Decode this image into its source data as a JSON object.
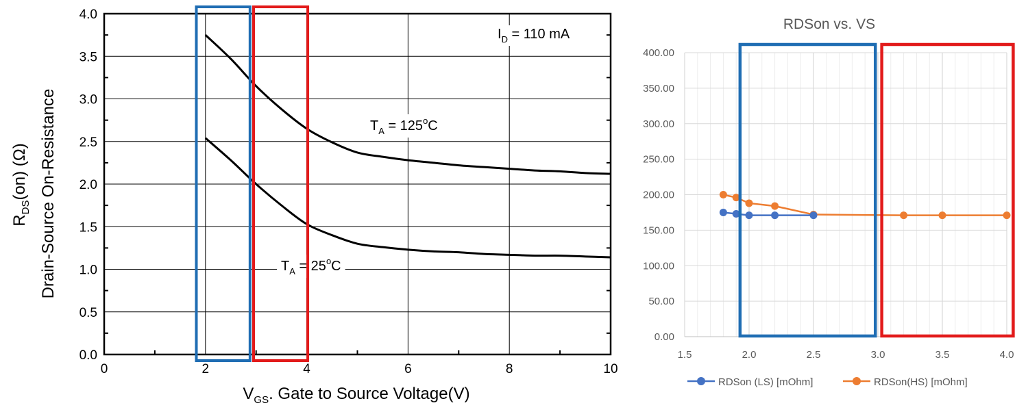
{
  "colors": {
    "curve_black": "#000000",
    "grid_left": "#000000",
    "grid_right": "#d9d9d9",
    "series_ls": "#4472c4",
    "series_hs": "#ed7d31",
    "box_blue": "#1f6db3",
    "box_red": "#e21a1a",
    "axis_text": "#595959"
  },
  "chart_data": [
    {
      "type": "line",
      "title": "",
      "xlabel_main": "V",
      "xlabel_sub": "GS",
      "xlabel_rest": ". Gate to Source Voltage(V)",
      "ylabel_r": "R",
      "ylabel_sub": "DS",
      "ylabel_rest": "(on)   (Ω)",
      "ylabel_line2": "Drain-Source On-Resistance",
      "xlim": [
        0,
        10
      ],
      "ylim": [
        0,
        4.0
      ],
      "x_ticks": [
        "0",
        "2",
        "4",
        "6",
        "8",
        "10"
      ],
      "y_ticks": [
        "0.0",
        "0.5",
        "1.0",
        "1.5",
        "2.0",
        "2.5",
        "3.0",
        "3.5",
        "4.0"
      ],
      "grid": true,
      "annotations": {
        "id_main": "I",
        "id_sub": "D",
        "id_rest": " = 110 mA",
        "t125_main": "T",
        "t125_sub": "A",
        "t125_rest": " = 125",
        "t125_sup": "o",
        "t125_unit": "C",
        "t25_main": "T",
        "t25_sub": "A",
        "t25_rest": " = 25",
        "t25_sup": "o",
        "t25_unit": "C"
      },
      "series": [
        {
          "x": [
            2.0,
            2.5,
            3.0,
            3.5,
            4.0,
            4.5,
            5.0,
            5.5,
            6.0,
            6.5,
            7.0,
            7.5,
            8.0,
            8.5,
            9.0,
            9.5,
            10.0
          ],
          "values": [
            3.75,
            3.47,
            3.15,
            2.88,
            2.65,
            2.49,
            2.37,
            2.32,
            2.28,
            2.25,
            2.22,
            2.2,
            2.18,
            2.16,
            2.15,
            2.13,
            2.12
          ]
        },
        {
          "x": [
            2.0,
            2.5,
            3.0,
            3.5,
            4.0,
            4.5,
            5.0,
            5.5,
            6.0,
            6.5,
            7.0,
            7.5,
            8.0,
            8.5,
            9.0,
            9.5,
            10.0
          ],
          "values": [
            2.54,
            2.28,
            2.0,
            1.75,
            1.53,
            1.4,
            1.3,
            1.26,
            1.23,
            1.21,
            1.2,
            1.18,
            1.17,
            1.16,
            1.16,
            1.15,
            1.14
          ]
        }
      ],
      "highlight_boxes_x": [
        [
          1.82,
          2.88
        ],
        [
          2.95,
          4.02
        ]
      ]
    },
    {
      "type": "line",
      "title": "RDSon vs. VS",
      "xlim": [
        1.5,
        4.0
      ],
      "ylim": [
        0,
        400
      ],
      "x_ticks": [
        "1.5",
        "2.0",
        "2.5",
        "3.0",
        "3.5",
        "4.0"
      ],
      "y_ticks": [
        "0.00",
        "50.00",
        "100.00",
        "150.00",
        "200.00",
        "250.00",
        "300.00",
        "350.00",
        "400.00"
      ],
      "grid": true,
      "legend_position": "bottom",
      "series": [
        {
          "name": "RDSon (LS) [mOhm]",
          "x": [
            1.8,
            1.9,
            2.0,
            2.2,
            2.5
          ],
          "values": [
            175,
            173,
            171,
            171,
            171
          ]
        },
        {
          "name": "RDSon(HS) [mOhm]",
          "x": [
            1.8,
            1.9,
            2.0,
            2.2,
            2.5,
            3.2,
            3.5,
            4.0
          ],
          "values": [
            200,
            196,
            188,
            184,
            172,
            171,
            171,
            171
          ]
        }
      ],
      "highlight_boxes_x": [
        [
          1.93,
          2.98
        ],
        [
          3.03,
          4.05
        ]
      ]
    }
  ]
}
